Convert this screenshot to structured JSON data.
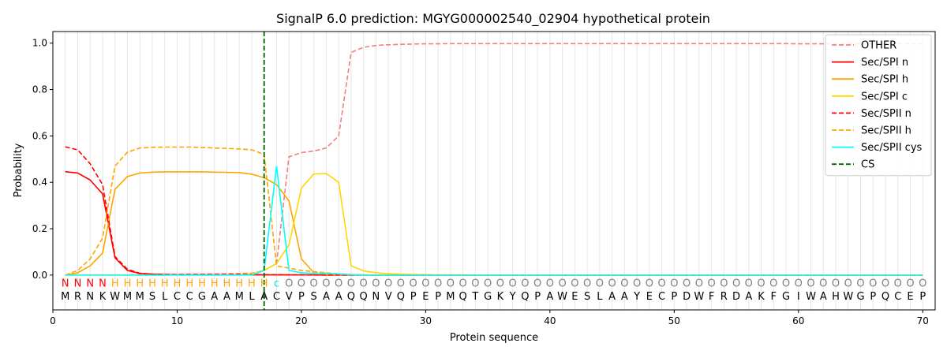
{
  "chart_data": {
    "type": "line",
    "title": "SignalP 6.0 prediction: MGYG000002540_02904 hypothetical protein",
    "xlabel": "Protein sequence",
    "ylabel": "Probability",
    "xlim": [
      0,
      71
    ],
    "ylim": [
      -0.15,
      1.05
    ],
    "x_ticks": [
      0,
      10,
      20,
      30,
      40,
      50,
      60,
      70
    ],
    "y_ticks": [
      0.0,
      0.2,
      0.4,
      0.6,
      0.8,
      1.0
    ],
    "x_tick_labels": [
      "0",
      "10",
      "20",
      "30",
      "40",
      "50",
      "60",
      "70"
    ],
    "y_tick_labels": [
      "0.0",
      "0.2",
      "0.4",
      "0.6",
      "0.8",
      "1.0"
    ],
    "grid": "vertical lines at each residue",
    "legend_position": "top-right",
    "cs_position": 17,
    "sequence": [
      "M",
      "R",
      "N",
      "K",
      "W",
      "M",
      "M",
      "S",
      "L",
      "C",
      "C",
      "G",
      "A",
      "A",
      "M",
      "L",
      "A",
      "C",
      "V",
      "P",
      "S",
      "A",
      "A",
      "Q",
      "Q",
      "N",
      "V",
      "Q",
      "P",
      "E",
      "P",
      "M",
      "Q",
      "T",
      "G",
      "K",
      "Y",
      "Q",
      "P",
      "A",
      "W",
      "E",
      "S",
      "L",
      "A",
      "A",
      "Y",
      "E",
      "C",
      "P",
      "D",
      "W",
      "F",
      "R",
      "D",
      "A",
      "K",
      "F",
      "G",
      "I",
      "W",
      "A",
      "H",
      "W",
      "G",
      "P",
      "Q",
      "C",
      "E",
      "P"
    ],
    "labels": [
      "N",
      "N",
      "N",
      "N",
      "H",
      "H",
      "H",
      "H",
      "H",
      "H",
      "H",
      "H",
      "H",
      "H",
      "H",
      "H",
      "H",
      "c",
      "O",
      "O",
      "O",
      "O",
      "O",
      "O",
      "O",
      "O",
      "O",
      "O",
      "O",
      "O",
      "O",
      "O",
      "O",
      "O",
      "O",
      "O",
      "O",
      "O",
      "O",
      "O",
      "O",
      "O",
      "O",
      "O",
      "O",
      "O",
      "O",
      "O",
      "O",
      "O",
      "O",
      "O",
      "O",
      "O",
      "O",
      "O",
      "O",
      "O",
      "O",
      "O",
      "O",
      "O",
      "O",
      "O",
      "O",
      "O",
      "O",
      "O",
      "O",
      "O"
    ],
    "label_colors": {
      "N": "#ff0000",
      "H": "#ffa500",
      "c": "#00e5e5",
      "O": "#808080"
    },
    "series": [
      {
        "name": "OTHER",
        "color": "#f08080",
        "dash": "dashed",
        "values": [
          0.0,
          0.0,
          0.0,
          0.0,
          0.0,
          0.001,
          0.002,
          0.003,
          0.003,
          0.003,
          0.004,
          0.004,
          0.005,
          0.006,
          0.007,
          0.008,
          0.02,
          0.05,
          0.51,
          0.528,
          0.535,
          0.548,
          0.6,
          0.96,
          0.982,
          0.99,
          0.993,
          0.995,
          0.996,
          0.997,
          0.997,
          0.998,
          0.998,
          0.998,
          0.998,
          0.998,
          0.998,
          0.998,
          0.998,
          0.998,
          0.998,
          0.998,
          0.998,
          0.998,
          0.998,
          0.998,
          0.998,
          0.998,
          0.998,
          0.998,
          0.998,
          0.998,
          0.998,
          0.998,
          0.998,
          0.998,
          0.998,
          0.998,
          0.998,
          0.997,
          0.997,
          0.997,
          0.997,
          0.997,
          0.997,
          0.997,
          0.997,
          0.997,
          0.997,
          0.997
        ]
      },
      {
        "name": "Sec/SPI n",
        "color": "#ff0000",
        "dash": "solid",
        "values": [
          0.446,
          0.44,
          0.41,
          0.35,
          0.075,
          0.02,
          0.007,
          0.004,
          0.002,
          0.001,
          0.001,
          0.001,
          0.001,
          0.001,
          0.001,
          0.001,
          0.001,
          0.001,
          0.001,
          0.001,
          0.001,
          0.0,
          0.0,
          0.0,
          0.0,
          0.0,
          0.0,
          0.0,
          0.0,
          0.0,
          0.0,
          0.0,
          0.0,
          0.0,
          0.0,
          0.0,
          0.0,
          0.0,
          0.0,
          0.0,
          0.0,
          0.0,
          0.0,
          0.0,
          0.0,
          0.0,
          0.0,
          0.0,
          0.0,
          0.0,
          0.0,
          0.0,
          0.0,
          0.0,
          0.0,
          0.0,
          0.0,
          0.0,
          0.0,
          0.0,
          0.0,
          0.0,
          0.0,
          0.0,
          0.0,
          0.0,
          0.0,
          0.0,
          0.0,
          0.0
        ]
      },
      {
        "name": "Sec/SPI h",
        "color": "#ffa500",
        "dash": "solid",
        "values": [
          0.0,
          0.01,
          0.04,
          0.095,
          0.37,
          0.425,
          0.44,
          0.444,
          0.445,
          0.445,
          0.445,
          0.445,
          0.444,
          0.443,
          0.442,
          0.435,
          0.42,
          0.39,
          0.32,
          0.07,
          0.01,
          0.003,
          0.002,
          0.001,
          0.0,
          0.0,
          0.0,
          0.0,
          0.0,
          0.0,
          0.0,
          0.0,
          0.0,
          0.0,
          0.0,
          0.0,
          0.0,
          0.0,
          0.0,
          0.0,
          0.0,
          0.0,
          0.0,
          0.0,
          0.0,
          0.0,
          0.0,
          0.0,
          0.0,
          0.0,
          0.0,
          0.0,
          0.0,
          0.0,
          0.0,
          0.0,
          0.0,
          0.0,
          0.0,
          0.0,
          0.0,
          0.0,
          0.0,
          0.0,
          0.0,
          0.0,
          0.0,
          0.0,
          0.0,
          0.0
        ]
      },
      {
        "name": "Sec/SPI c",
        "color": "#ffd700",
        "dash": "solid",
        "values": [
          0.0,
          0.0,
          0.0,
          0.0,
          0.0,
          0.0,
          0.0,
          0.0,
          0.0,
          0.0,
          0.0,
          0.0,
          0.0,
          0.001,
          0.002,
          0.006,
          0.02,
          0.05,
          0.13,
          0.375,
          0.436,
          0.438,
          0.4,
          0.04,
          0.018,
          0.01,
          0.006,
          0.004,
          0.003,
          0.002,
          0.001,
          0.001,
          0.001,
          0.0,
          0.0,
          0.0,
          0.0,
          0.0,
          0.0,
          0.0,
          0.0,
          0.0,
          0.0,
          0.0,
          0.0,
          0.0,
          0.0,
          0.0,
          0.0,
          0.0,
          0.0,
          0.0,
          0.0,
          0.0,
          0.0,
          0.0,
          0.0,
          0.0,
          0.0,
          0.0,
          0.0,
          0.0,
          0.0,
          0.0,
          0.0,
          0.0,
          0.0,
          0.0,
          0.0,
          0.0
        ]
      },
      {
        "name": "Sec/SPII n",
        "color": "#ff0000",
        "dash": "dashed",
        "values": [
          0.553,
          0.54,
          0.48,
          0.39,
          0.08,
          0.025,
          0.008,
          0.004,
          0.003,
          0.002,
          0.002,
          0.002,
          0.002,
          0.002,
          0.002,
          0.002,
          0.002,
          0.002,
          0.001,
          0.001,
          0.0,
          0.0,
          0.0,
          0.0,
          0.0,
          0.0,
          0.0,
          0.0,
          0.0,
          0.0,
          0.0,
          0.0,
          0.0,
          0.0,
          0.0,
          0.0,
          0.0,
          0.0,
          0.0,
          0.0,
          0.0,
          0.0,
          0.0,
          0.0,
          0.0,
          0.0,
          0.0,
          0.0,
          0.0,
          0.0,
          0.0,
          0.0,
          0.0,
          0.0,
          0.0,
          0.0,
          0.0,
          0.0,
          0.0,
          0.0,
          0.0,
          0.0,
          0.0,
          0.0,
          0.0,
          0.0,
          0.0,
          0.0,
          0.0,
          0.0
        ]
      },
      {
        "name": "Sec/SPII h",
        "color": "#ffa500",
        "dash": "dashed",
        "values": [
          0.0,
          0.02,
          0.07,
          0.16,
          0.47,
          0.53,
          0.548,
          0.551,
          0.552,
          0.552,
          0.552,
          0.55,
          0.548,
          0.546,
          0.544,
          0.54,
          0.52,
          0.04,
          0.03,
          0.02,
          0.015,
          0.01,
          0.005,
          0.002,
          0.0,
          0.0,
          0.0,
          0.0,
          0.0,
          0.0,
          0.0,
          0.0,
          0.0,
          0.0,
          0.0,
          0.0,
          0.0,
          0.0,
          0.0,
          0.0,
          0.0,
          0.0,
          0.0,
          0.0,
          0.0,
          0.0,
          0.0,
          0.0,
          0.0,
          0.0,
          0.0,
          0.0,
          0.0,
          0.0,
          0.0,
          0.0,
          0.0,
          0.0,
          0.0,
          0.0,
          0.0,
          0.0,
          0.0,
          0.0,
          0.0,
          0.0,
          0.0,
          0.0,
          0.0,
          0.0
        ]
      },
      {
        "name": "Sec/SPII cys",
        "color": "#00ffff",
        "dash": "solid",
        "values": [
          0.0,
          0.0,
          0.0,
          0.0,
          0.0,
          0.0,
          0.0,
          0.0,
          0.0,
          0.0,
          0.0,
          0.0,
          0.0,
          0.0,
          0.0,
          0.0,
          0.02,
          0.47,
          0.02,
          0.01,
          0.008,
          0.008,
          0.005,
          0.002,
          0.001,
          0.0,
          0.0,
          0.0,
          0.0,
          0.0,
          0.0,
          0.0,
          0.0,
          0.0,
          0.0,
          0.0,
          0.0,
          0.0,
          0.0,
          0.0,
          0.0,
          0.0,
          0.0,
          0.0,
          0.0,
          0.0,
          0.0,
          0.0,
          0.0,
          0.0,
          0.0,
          0.0,
          0.0,
          0.0,
          0.0,
          0.0,
          0.0,
          0.0,
          0.0,
          0.0,
          0.0,
          0.0,
          0.0,
          0.0,
          0.0,
          0.0,
          0.0,
          0.0,
          0.0,
          0.0
        ]
      }
    ],
    "legend": [
      {
        "name": "OTHER",
        "color": "#f08080",
        "dash": "dashed"
      },
      {
        "name": "Sec/SPI n",
        "color": "#ff0000",
        "dash": "solid"
      },
      {
        "name": "Sec/SPI h",
        "color": "#ffa500",
        "dash": "solid"
      },
      {
        "name": "Sec/SPI c",
        "color": "#ffd700",
        "dash": "solid"
      },
      {
        "name": "Sec/SPII n",
        "color": "#ff0000",
        "dash": "dashed"
      },
      {
        "name": "Sec/SPII h",
        "color": "#ffa500",
        "dash": "dashed"
      },
      {
        "name": "Sec/SPII cys",
        "color": "#00ffff",
        "dash": "solid"
      },
      {
        "name": "CS",
        "color": "#006400",
        "dash": "dashed"
      }
    ]
  }
}
